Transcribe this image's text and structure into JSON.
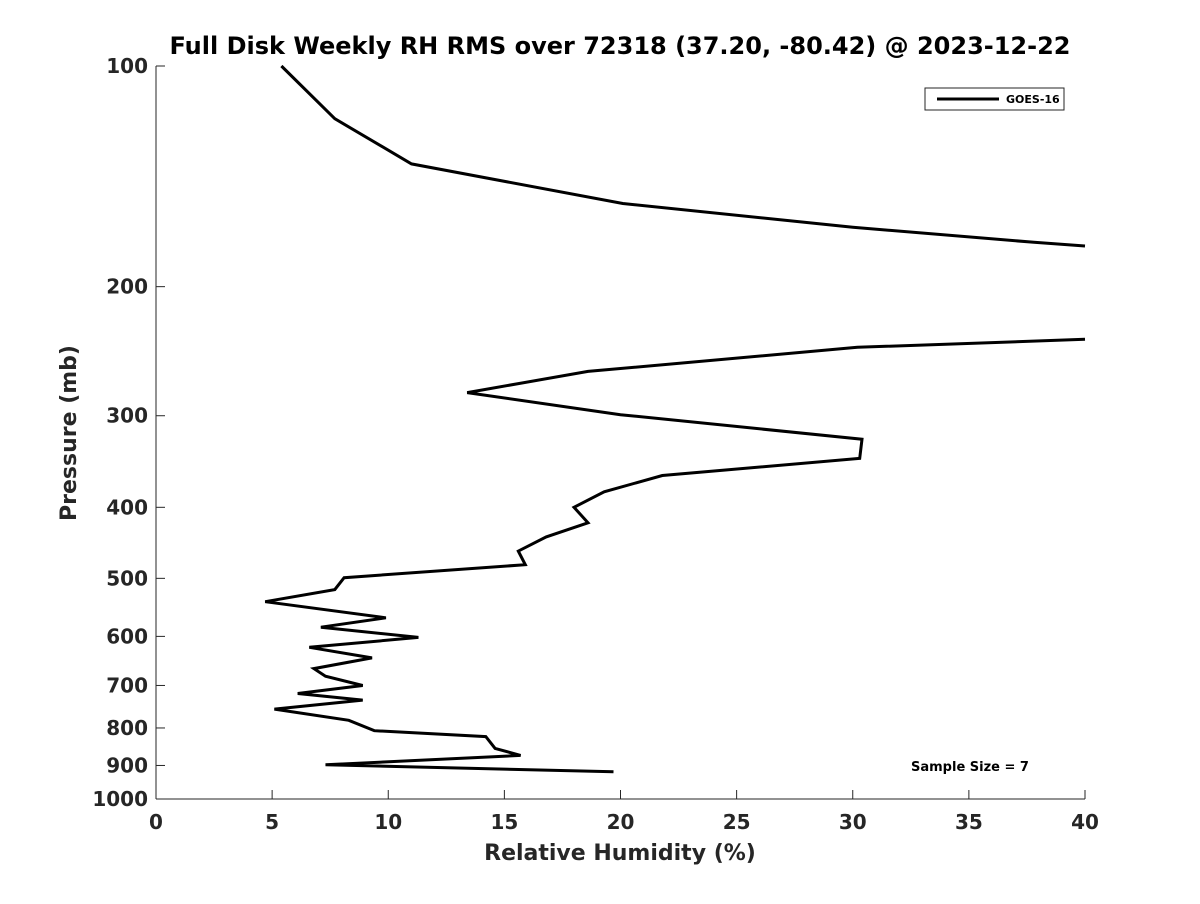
{
  "chart_data": {
    "type": "line",
    "title": "Full Disk Weekly RH RMS over 72318 (37.20, -80.42) @ 2023-12-22",
    "xlabel": "Relative Humidity (%)",
    "ylabel": "Pressure (mb)",
    "xlim": [
      0,
      40
    ],
    "ylim": [
      100,
      1000
    ],
    "yscale": "log",
    "yreversed": true,
    "grid": false,
    "legend_position": "top-right",
    "x_ticks": [
      0,
      5,
      10,
      15,
      20,
      25,
      30,
      35,
      40
    ],
    "x_tick_labels": [
      "0",
      "5",
      "10",
      "15",
      "20",
      "25",
      "30",
      "35",
      "40"
    ],
    "y_ticks": [
      100,
      200,
      300,
      400,
      500,
      600,
      700,
      800,
      900,
      1000
    ],
    "y_tick_labels": [
      "100",
      "200",
      "300",
      "400",
      "500",
      "600",
      "700",
      "800",
      "900",
      "1000"
    ],
    "annotation": "Sample Size = 7",
    "series": [
      {
        "name": "GOES-16",
        "color": "#000000",
        "segments": [
          [
            {
              "x": 5.4,
              "y": 100
            },
            {
              "x": 7.7,
              "y": 118
            },
            {
              "x": 11.0,
              "y": 136
            },
            {
              "x": 20.1,
              "y": 154
            },
            {
              "x": 30.0,
              "y": 166
            },
            {
              "x": 37.8,
              "y": 174
            },
            {
              "x": 40.0,
              "y": 176
            }
          ],
          [
            {
              "x": 40.0,
              "y": 236
            },
            {
              "x": 30.2,
              "y": 242
            },
            {
              "x": 18.6,
              "y": 261
            },
            {
              "x": 13.4,
              "y": 279
            },
            {
              "x": 20.0,
              "y": 299
            },
            {
              "x": 30.4,
              "y": 323
            },
            {
              "x": 30.3,
              "y": 343
            },
            {
              "x": 21.8,
              "y": 362
            },
            {
              "x": 19.3,
              "y": 381
            },
            {
              "x": 18.0,
              "y": 400
            },
            {
              "x": 18.6,
              "y": 420
            },
            {
              "x": 16.8,
              "y": 439
            },
            {
              "x": 15.6,
              "y": 459
            },
            {
              "x": 15.9,
              "y": 479
            },
            {
              "x": 8.1,
              "y": 499
            },
            {
              "x": 7.7,
              "y": 518
            },
            {
              "x": 4.7,
              "y": 538
            },
            {
              "x": 9.9,
              "y": 566
            },
            {
              "x": 7.1,
              "y": 583
            },
            {
              "x": 11.3,
              "y": 602
            },
            {
              "x": 6.6,
              "y": 621
            },
            {
              "x": 9.3,
              "y": 642
            },
            {
              "x": 6.8,
              "y": 664
            },
            {
              "x": 7.3,
              "y": 680
            },
            {
              "x": 8.9,
              "y": 700
            },
            {
              "x": 6.1,
              "y": 718
            },
            {
              "x": 8.9,
              "y": 733
            },
            {
              "x": 5.1,
              "y": 754
            },
            {
              "x": 8.3,
              "y": 781
            },
            {
              "x": 9.4,
              "y": 807
            },
            {
              "x": 14.2,
              "y": 822
            },
            {
              "x": 14.6,
              "y": 853
            },
            {
              "x": 15.7,
              "y": 872
            },
            {
              "x": 7.3,
              "y": 898
            },
            {
              "x": 19.7,
              "y": 918
            }
          ]
        ]
      }
    ]
  }
}
